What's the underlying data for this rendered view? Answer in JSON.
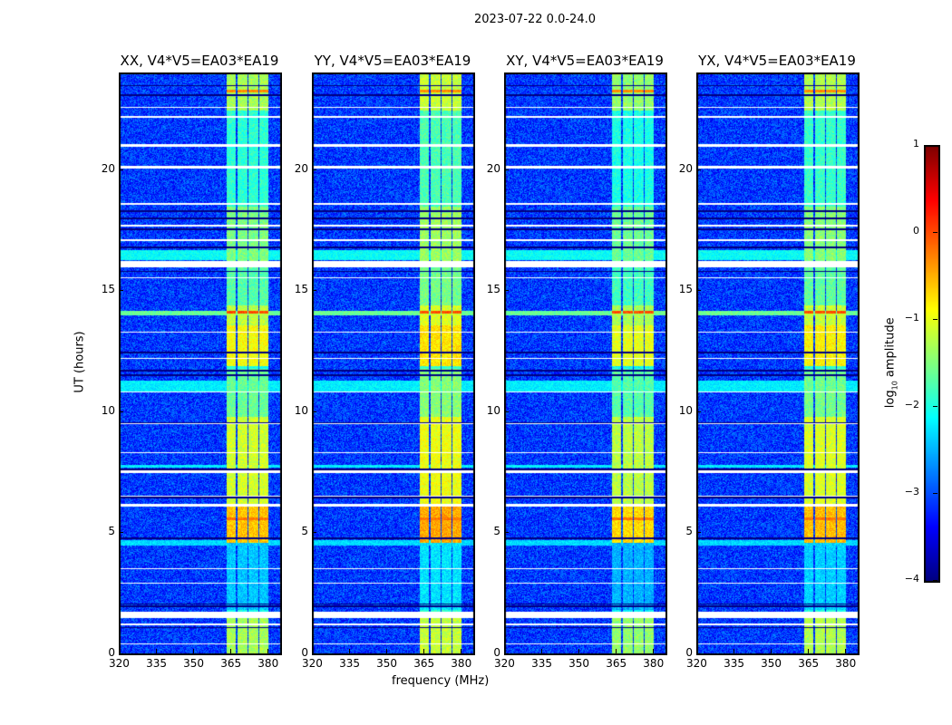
{
  "chart_data": {
    "type": "heatmap",
    "title": "2023-07-22 0.0-24.0",
    "xlabel": "frequency (MHz)",
    "ylabel": "UT (hours)",
    "xlim": [
      320,
      385
    ],
    "ylim": [
      0,
      24
    ],
    "xticks": [
      320,
      335,
      350,
      365,
      380
    ],
    "yticks": [
      0,
      5,
      10,
      15,
      20
    ],
    "panels": [
      {
        "title": "XX, V4*V5=EA03*EA19",
        "band_boost": 0.0
      },
      {
        "title": "YY, V4*V5=EA03*EA19",
        "band_boost": 0.15
      },
      {
        "title": "XY, V4*V5=EA03*EA19",
        "band_boost": -0.1
      },
      {
        "title": "YX, V4*V5=EA03*EA19",
        "band_boost": 0.05
      }
    ],
    "colorbar": {
      "label_main": "log",
      "label_sub": "10",
      "label_rest": " amplitude",
      "range": [
        -4,
        1
      ],
      "ticks": [
        "1",
        "0",
        "−1",
        "−2",
        "−3",
        "−4"
      ],
      "tick_values": [
        1,
        0,
        -1,
        -2,
        -3,
        -4
      ],
      "colormap": "jet"
    },
    "background_log_amplitude": -3.1,
    "rfi_subbands_mhz": [
      [
        363,
        367
      ],
      [
        367.5,
        371.5
      ],
      [
        372,
        376
      ],
      [
        376.5,
        380
      ]
    ],
    "rfi_levels": [
      {
        "t": [
          0,
          1.5
        ],
        "v": -1.3
      },
      {
        "t": [
          1.8,
          4.6
        ],
        "v": -2.4
      },
      {
        "t": [
          4.6,
          6.1
        ],
        "v": -0.6
      },
      {
        "t": [
          6.2,
          9.8
        ],
        "v": -1.1
      },
      {
        "t": [
          9.8,
          11.8
        ],
        "v": -1.6
      },
      {
        "t": [
          11.9,
          13.6
        ],
        "v": -0.9
      },
      {
        "t": [
          13.6,
          14.4
        ],
        "v": -1.2
      },
      {
        "t": [
          14.4,
          16.0
        ],
        "v": -1.7
      },
      {
        "t": [
          16.2,
          18.5
        ],
        "v": -1.5
      },
      {
        "t": [
          18.5,
          22.5
        ],
        "v": -1.9
      },
      {
        "t": [
          22.5,
          24
        ],
        "v": -1.3
      }
    ],
    "hot_lines": [
      {
        "t": 14.15,
        "v": 0.0
      },
      {
        "t": 23.3,
        "v": -0.3
      },
      {
        "t": 5.6,
        "v": -0.2
      }
    ],
    "broadband_levels": [
      {
        "t": [
          16.3,
          16.7
        ],
        "v": -2.1
      },
      {
        "t": [
          10.8,
          11.3
        ],
        "v": -2.2
      },
      {
        "t": [
          4.5,
          4.7
        ],
        "v": -2.3
      },
      {
        "t": [
          14.0,
          14.2
        ],
        "v": -1.6
      },
      {
        "t": [
          7.7,
          7.8
        ],
        "v": -2.2
      }
    ],
    "flagged_hours": [
      [
        1.5,
        1.75
      ],
      [
        2.9,
        2.95
      ],
      [
        3.5,
        3.55
      ],
      [
        6.1,
        6.2
      ],
      [
        6.5,
        6.55
      ],
      [
        7.5,
        7.6
      ],
      [
        8.3,
        8.35
      ],
      [
        9.5,
        9.55
      ],
      [
        10.8,
        10.85
      ],
      [
        12.2,
        12.25
      ],
      [
        13.3,
        13.35
      ],
      [
        15.55,
        15.6
      ],
      [
        16.0,
        16.25
      ],
      [
        17.1,
        17.15
      ],
      [
        17.7,
        17.75
      ],
      [
        18.6,
        18.65
      ],
      [
        20.1,
        20.2
      ],
      [
        21.0,
        21.1
      ],
      [
        22.2,
        22.25
      ],
      [
        22.6,
        22.65
      ],
      [
        0.4,
        0.45
      ],
      [
        1.2,
        1.25
      ]
    ],
    "dark_lines": [
      [
        1.05,
        1.1
      ],
      [
        1.95,
        2.0
      ],
      [
        2.05,
        2.1
      ],
      [
        4.75,
        4.8
      ],
      [
        6.45,
        6.5
      ],
      [
        7.6,
        7.65
      ],
      [
        9.55,
        9.6
      ],
      [
        11.5,
        11.55
      ],
      [
        11.7,
        11.75
      ],
      [
        12.45,
        12.5
      ],
      [
        15.8,
        15.85
      ],
      [
        16.8,
        16.85
      ],
      [
        17.55,
        17.6
      ],
      [
        18.0,
        18.05
      ],
      [
        18.3,
        18.35
      ],
      [
        23.1,
        23.15
      ],
      [
        23.5,
        23.55
      ]
    ]
  }
}
